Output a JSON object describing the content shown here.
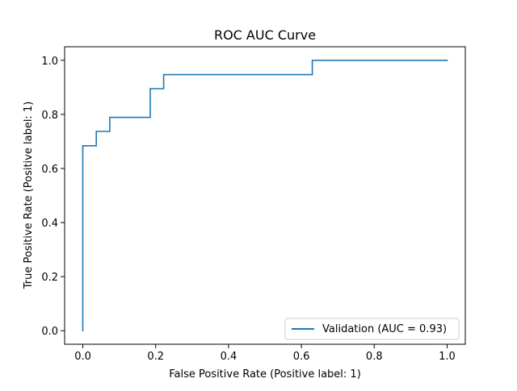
{
  "chart_data": {
    "type": "line",
    "title": "ROC AUC Curve",
    "xlabel": "False Positive Rate (Positive label: 1)",
    "ylabel": "True Positive Rate (Positive label: 1)",
    "xlim": [
      -0.05,
      1.05
    ],
    "ylim": [
      -0.05,
      1.05
    ],
    "xticks": [
      0.0,
      0.2,
      0.4,
      0.6,
      0.8,
      1.0
    ],
    "yticks": [
      0.0,
      0.2,
      0.4,
      0.6,
      0.8,
      1.0
    ],
    "xtick_labels": [
      "0.0",
      "0.2",
      "0.4",
      "0.6",
      "0.8",
      "1.0"
    ],
    "ytick_labels": [
      "0.0",
      "0.2",
      "0.4",
      "0.6",
      "0.8",
      "1.0"
    ],
    "grid": false,
    "legend_position": "lower-right",
    "series": [
      {
        "name": "Validation (AUC = 0.93)",
        "color": "#1f77b4",
        "step": true,
        "x": [
          0.0,
          0.0,
          0.037,
          0.037,
          0.074,
          0.074,
          0.185,
          0.185,
          0.222,
          0.222,
          0.63,
          0.63,
          1.0
        ],
        "y": [
          0.0,
          0.684,
          0.684,
          0.737,
          0.737,
          0.789,
          0.789,
          0.895,
          0.895,
          0.947,
          0.947,
          1.0,
          1.0
        ]
      }
    ]
  }
}
